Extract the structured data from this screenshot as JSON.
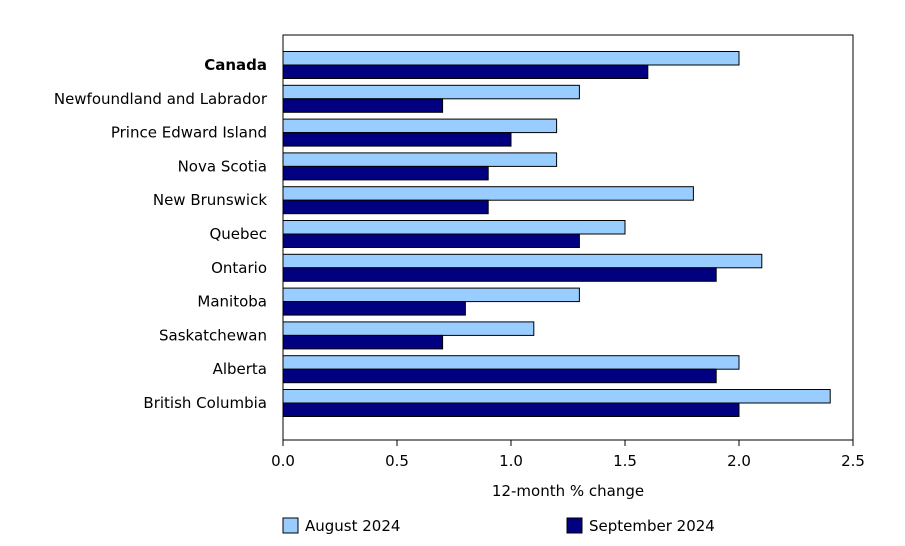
{
  "chart_data": {
    "type": "bar",
    "orientation": "horizontal",
    "categories": [
      "Canada",
      "Newfoundland and Labrador",
      "Prince Edward Island",
      "Nova Scotia",
      "New Brunswick",
      "Quebec",
      "Ontario",
      "Manitoba",
      "Saskatchewan",
      "Alberta",
      "British Columbia"
    ],
    "bold_categories": [
      "Canada"
    ],
    "series": [
      {
        "name": "August 2024",
        "color": "#99ccff",
        "values": [
          2.0,
          1.3,
          1.2,
          1.2,
          1.8,
          1.5,
          2.1,
          1.3,
          1.1,
          2.0,
          2.4
        ]
      },
      {
        "name": "September 2024",
        "color": "#000080",
        "values": [
          1.6,
          0.7,
          1.0,
          0.9,
          0.9,
          1.3,
          1.9,
          0.8,
          0.7,
          1.9,
          2.0
        ]
      }
    ],
    "xlabel": "12-month % change",
    "xlim": [
      0,
      2.5
    ],
    "xticks": [
      0,
      0.5,
      1,
      1.5,
      2,
      2.5
    ],
    "xtick_labels": [
      "0.0",
      "0.5",
      "1.0",
      "1.5",
      "2.0",
      "2.5"
    ],
    "grid": false,
    "legend_position": "bottom"
  }
}
